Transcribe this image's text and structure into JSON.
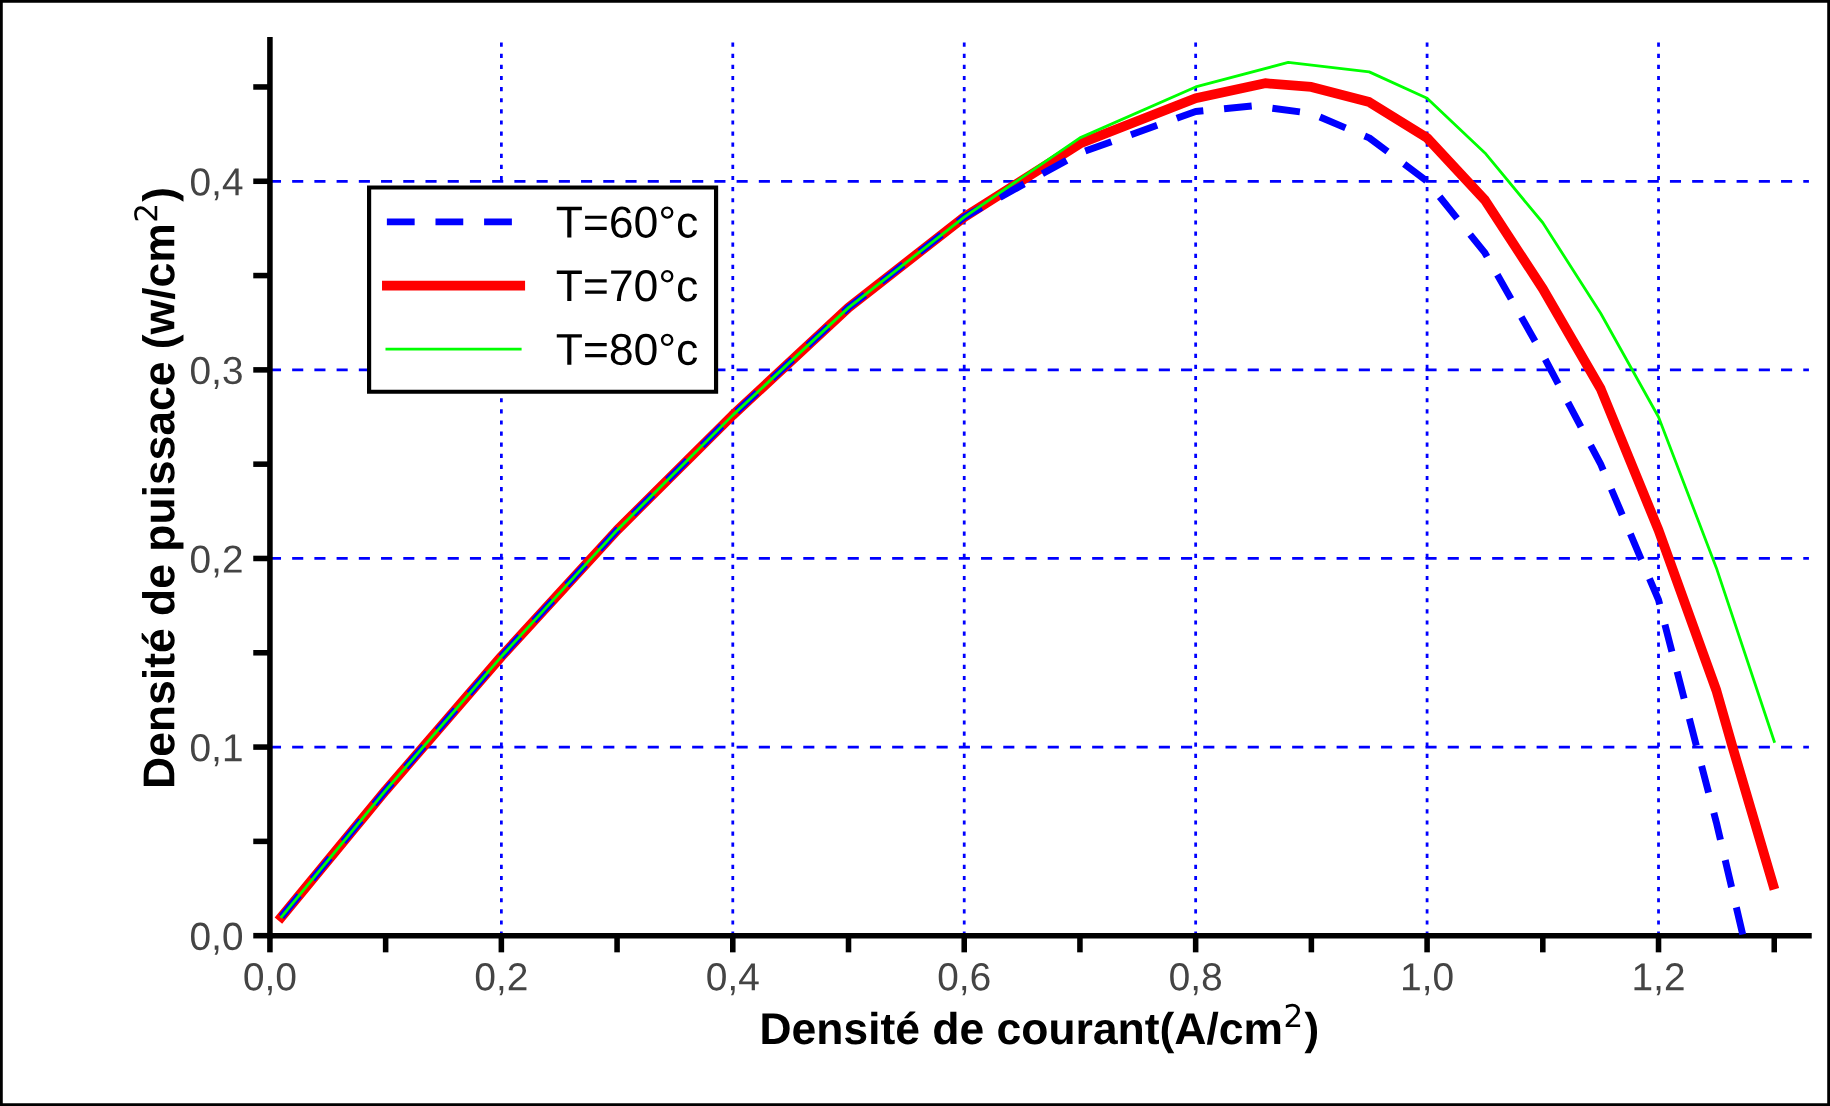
{
  "chart_data": {
    "type": "line",
    "xlabel": "Densité de courant(A/cm$^{2}$)",
    "ylabel": "Densité de puissace (w/cm$^{2}$)",
    "xlim": [
      0,
      1.33
    ],
    "ylim": [
      0,
      0.475
    ],
    "xticks": [
      {
        "value": 0,
        "label": "0,0"
      },
      {
        "value": 0.1,
        "label": null
      },
      {
        "value": 0.2,
        "label": "0,2"
      },
      {
        "value": 0.3,
        "label": null
      },
      {
        "value": 0.4,
        "label": "0,4"
      },
      {
        "value": 0.5,
        "label": null
      },
      {
        "value": 0.6,
        "label": "0,6"
      },
      {
        "value": 0.7,
        "label": null
      },
      {
        "value": 0.8,
        "label": "0,8"
      },
      {
        "value": 0.9,
        "label": null
      },
      {
        "value": 1.0,
        "label": "1,0"
      },
      {
        "value": 1.1,
        "label": null
      },
      {
        "value": 1.2,
        "label": "1,2"
      },
      {
        "value": 1.3,
        "label": null
      }
    ],
    "yticks": [
      {
        "value": 0,
        "label": "0,0"
      },
      {
        "value": 0.05,
        "label": null
      },
      {
        "value": 0.1,
        "label": "0,1"
      },
      {
        "value": 0.15,
        "label": null
      },
      {
        "value": 0.2,
        "label": "0,2"
      },
      {
        "value": 0.25,
        "label": null
      },
      {
        "value": 0.3,
        "label": "0,3"
      },
      {
        "value": 0.35,
        "label": null
      },
      {
        "value": 0.4,
        "label": "0,4"
      },
      {
        "value": 0.45,
        "label": null
      }
    ],
    "grid": true,
    "legend": "top left",
    "series": [
      {
        "name": "T=60°c",
        "color": "#0000ff",
        "line_style": "dashed",
        "x": [
          0.01,
          0.1,
          0.2,
          0.3,
          0.4,
          0.5,
          0.6,
          0.7,
          0.8,
          0.85,
          0.9,
          0.95,
          1.0,
          1.05,
          1.1,
          1.15,
          1.2,
          1.233,
          1.25,
          1.273
        ],
        "values": [
          0.01,
          0.077,
          0.148,
          0.215,
          0.276,
          0.333,
          0.381,
          0.415,
          0.437,
          0.44,
          0.436,
          0.423,
          0.4,
          0.362,
          0.308,
          0.25,
          0.178,
          0.1,
          0.06,
          0.0
        ]
      },
      {
        "name": "T=70°c",
        "color": "#ff0000",
        "line_style": "solid",
        "x": [
          0.01,
          0.1,
          0.2,
          0.3,
          0.4,
          0.5,
          0.6,
          0.7,
          0.8,
          0.86,
          0.9,
          0.95,
          1.0,
          1.05,
          1.1,
          1.15,
          1.2,
          1.25,
          1.264,
          1.299
        ],
        "values": [
          0.01,
          0.077,
          0.148,
          0.215,
          0.276,
          0.333,
          0.381,
          0.42,
          0.444,
          0.452,
          0.45,
          0.442,
          0.423,
          0.39,
          0.343,
          0.29,
          0.215,
          0.13,
          0.1,
          0.027
        ]
      },
      {
        "name": "T=80°c",
        "color": "#00ff00",
        "line_style": "solid",
        "x": [
          0.01,
          0.1,
          0.2,
          0.3,
          0.4,
          0.5,
          0.6,
          0.7,
          0.8,
          0.88,
          0.95,
          1.0,
          1.05,
          1.1,
          1.15,
          1.2,
          1.25,
          1.3
        ],
        "values": [
          0.01,
          0.077,
          0.148,
          0.215,
          0.276,
          0.333,
          0.381,
          0.423,
          0.45,
          0.463,
          0.458,
          0.444,
          0.415,
          0.378,
          0.33,
          0.275,
          0.195,
          0.103
        ]
      }
    ]
  }
}
